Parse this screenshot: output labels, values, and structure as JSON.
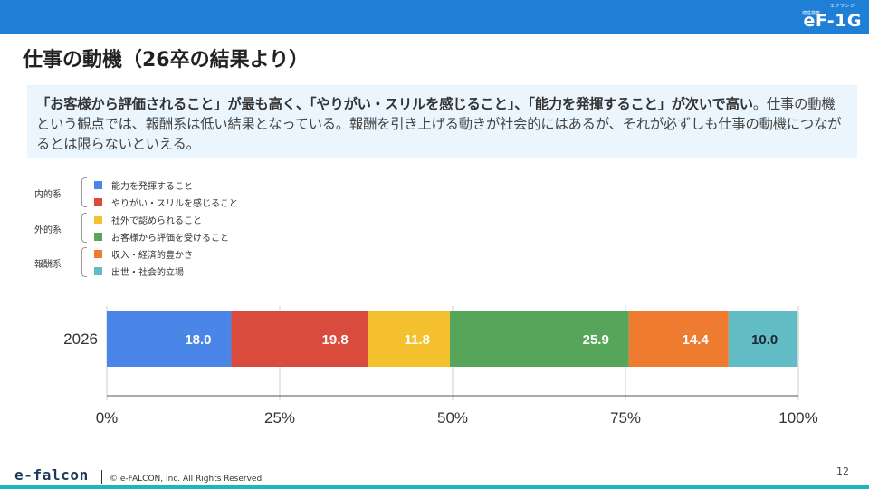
{
  "header": {
    "logo_small_top": "エフワンジー",
    "logo_small_left": "適性検査",
    "logo_main": "eF-1G"
  },
  "title": "仕事の動機（26卒の結果より）",
  "summary": {
    "bold_text": "「お客様から評価されること」が最も高く、「やりがい・スリルを感じること」、「能力を発揮すること」が次いで高い",
    "normal_text": "。仕事の動機という観点では、報酬系は低い結果となっている。報酬を引き上げる動きが社会的にはあるが、それが必ずしも仕事の動機につながるとは限らないといえる。"
  },
  "legend": {
    "groups": [
      {
        "label": "内的系",
        "items": [
          {
            "label": "能力を発揮すること",
            "color": "#4a86e8"
          },
          {
            "label": "やりがい・スリルを感じること",
            "color": "#d94c3d"
          }
        ]
      },
      {
        "label": "外的系",
        "items": [
          {
            "label": "社外で認められること",
            "color": "#f4c02e"
          },
          {
            "label": "お客様から評価を受けること",
            "color": "#57a55a"
          }
        ]
      },
      {
        "label": "報酬系",
        "items": [
          {
            "label": "収入・経済的豊かさ",
            "color": "#ee7b30"
          },
          {
            "label": "出世・社会的立場",
            "color": "#62bcc5"
          }
        ]
      }
    ]
  },
  "chart_data": {
    "type": "bar",
    "orientation": "horizontal",
    "stacked": true,
    "categories": [
      "2026"
    ],
    "series": [
      {
        "name": "能力を発揮すること",
        "values": [
          18.0
        ],
        "color": "#4a86e8"
      },
      {
        "name": "やりがい・スリルを感じること",
        "values": [
          19.8
        ],
        "color": "#d94c3d"
      },
      {
        "name": "社外で認められること",
        "values": [
          11.8
        ],
        "color": "#f4c02e"
      },
      {
        "name": "お客様から評価を受けること",
        "values": [
          25.9
        ],
        "color": "#57a55a"
      },
      {
        "name": "収入・経済的豊かさ",
        "values": [
          14.4
        ],
        "color": "#ee7b30"
      },
      {
        "name": "出世・社会的立場",
        "values": [
          10.0
        ],
        "color": "#62bcc5"
      }
    ],
    "data_labels": [
      "18.0",
      "19.8",
      "11.8",
      "25.9",
      "14.4",
      "10.0"
    ],
    "x_ticks": [
      "0%",
      "25%",
      "50%",
      "75%",
      "100%"
    ],
    "xlim": [
      0,
      100
    ],
    "grid": "vertical",
    "title": "",
    "xlabel": "",
    "ylabel": ""
  },
  "footer": {
    "brand": "e-falcon",
    "copyright": "© e-FALCON, Inc. All Rights Reserved.",
    "page_number": "12"
  }
}
